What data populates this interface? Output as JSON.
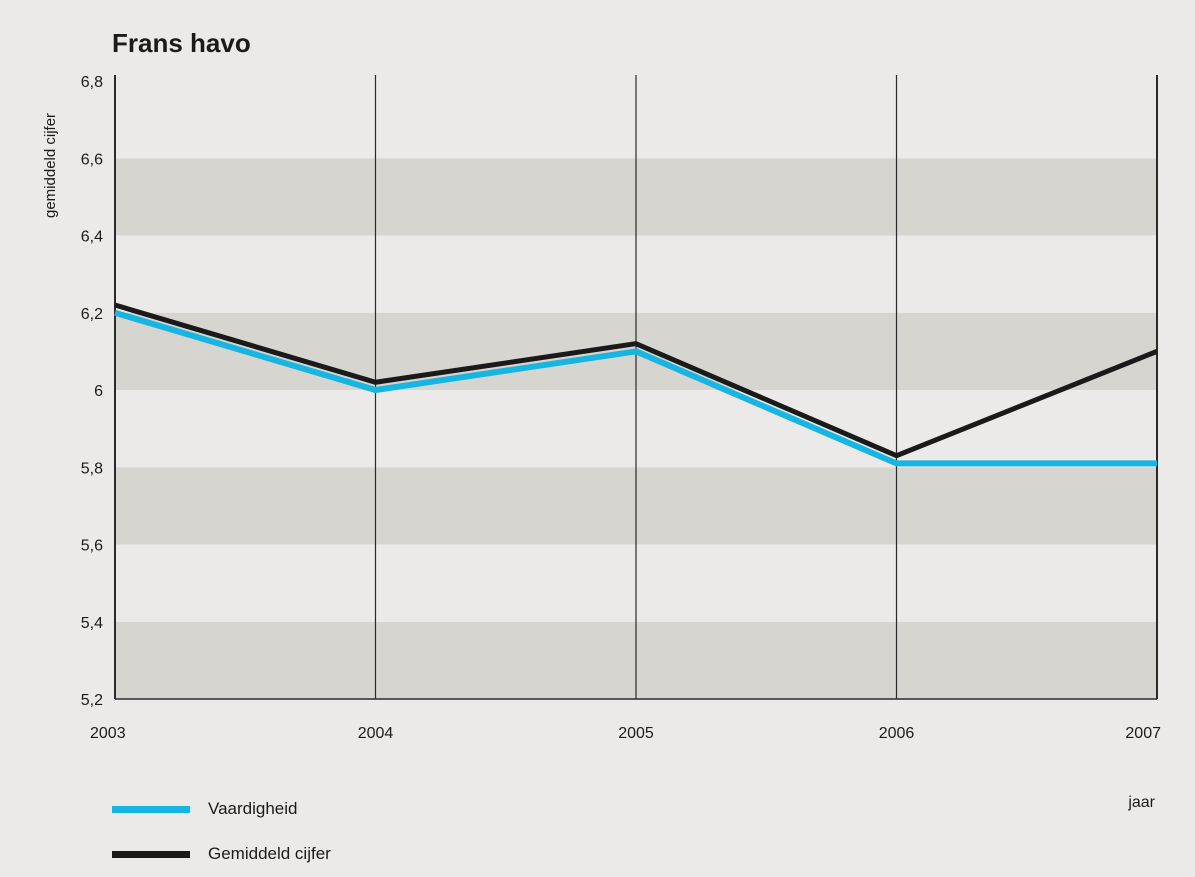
{
  "chart_data": {
    "type": "line",
    "title": "Frans havo",
    "xlabel": "jaar",
    "ylabel": "gemiddeld cijfer",
    "x": [
      "2003",
      "2004",
      "2005",
      "2006",
      "2007"
    ],
    "ylim": [
      5.2,
      6.8
    ],
    "yticks": [
      5.2,
      5.4,
      5.6,
      5.8,
      6.0,
      6.2,
      6.4,
      6.6,
      6.8
    ],
    "ytick_labels": [
      "5,2",
      "5,4",
      "5,6",
      "5,8",
      "6",
      "6,2",
      "6,4",
      "6,6",
      "6,8"
    ],
    "grid": "alternating horizontal bands, vertical lines at each year",
    "legend_position": "bottom-left",
    "series": [
      {
        "name": "Vaardigheid",
        "color": "#17b5e2",
        "values": [
          6.2,
          6.0,
          6.1,
          5.81,
          5.81
        ]
      },
      {
        "name": "Gemiddeld cijfer",
        "color": "#1a1a1a",
        "values": [
          6.22,
          6.02,
          6.12,
          5.83,
          6.1
        ]
      }
    ],
    "colors": {
      "band_dark": "#d6d5d0",
      "band_light": "#ebeae8"
    }
  }
}
